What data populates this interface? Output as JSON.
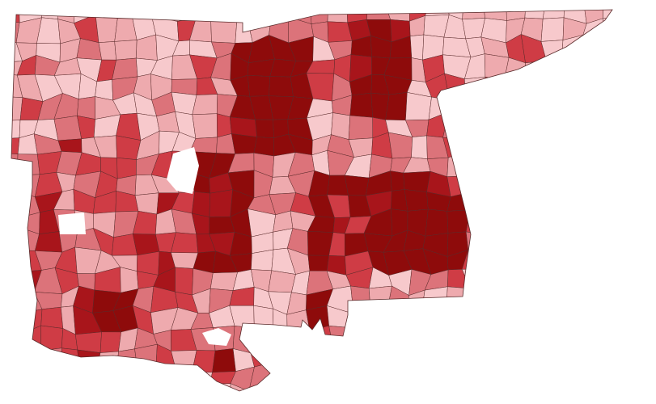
{
  "map": {
    "colors": [
      "#f7c9cc",
      "#eeaaae",
      "#dc737a",
      "#cf3c45",
      "#a8151b",
      "#8e0b0b"
    ]
  }
}
